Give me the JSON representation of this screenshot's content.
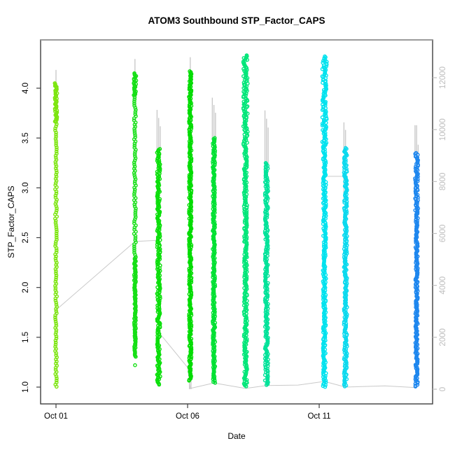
{
  "chart_data": {
    "type": "scatter",
    "title": "ATOM3 Southbound STP_Factor_CAPS",
    "xlabel": "Date",
    "ylabel": "STP_Factor_CAPS",
    "point_style": "open-circle",
    "grid": false,
    "ylim": [
      0.85,
      4.47
    ],
    "y2lim": [
      0,
      12600
    ],
    "x_ticks": [
      {
        "label": "Oct 01",
        "day": 0
      },
      {
        "label": "Oct 06",
        "day": 5
      },
      {
        "label": "Oct 11",
        "day": 10
      }
    ],
    "y_ticks": [
      {
        "label": "1.0",
        "value": 1.0
      },
      {
        "label": "1.5",
        "value": 1.5
      },
      {
        "label": "2.0",
        "value": 2.0
      },
      {
        "label": "2.5",
        "value": 2.5
      },
      {
        "label": "3.0",
        "value": 3.0
      },
      {
        "label": "3.5",
        "value": 3.5
      },
      {
        "label": "4.0",
        "value": 4.0
      }
    ],
    "y2_ticks": [
      {
        "label": "0",
        "value": 0
      },
      {
        "label": "2000",
        "value": 2000
      },
      {
        "label": "4000",
        "value": 4000
      },
      {
        "label": "6000",
        "value": 6000
      },
      {
        "label": "8000",
        "value": 8000
      },
      {
        "label": "10000",
        "value": 10000
      },
      {
        "label": "12000",
        "value": 12000
      }
    ],
    "clusters": [
      {
        "day": 0.0,
        "color": "#7CE50F",
        "min": 1.0,
        "max": 4.05,
        "segments": [
          [
            4.05,
            3.66,
            "dense",
            8
          ],
          [
            3.66,
            1.0,
            "sparse",
            7
          ]
        ]
      },
      {
        "day": 3.0,
        "color": "#15DF15",
        "min": 1.21,
        "max": 4.15,
        "segments": [
          [
            4.15,
            3.93,
            "dense",
            8
          ],
          [
            3.93,
            2.3,
            "sparse",
            7
          ],
          [
            2.3,
            1.3,
            "dense",
            7
          ],
          [
            1.22,
            1.21,
            "sparse",
            5
          ]
        ]
      },
      {
        "day": 3.9,
        "color": "#0ADF0A",
        "min": 1.02,
        "max": 3.39,
        "segments": [
          [
            3.39,
            1.02,
            "dense",
            9
          ]
        ]
      },
      {
        "day": 5.1,
        "color": "#00DC00",
        "min": 1.06,
        "max": 4.17,
        "segments": [
          [
            4.17,
            1.06,
            "dense",
            8
          ]
        ]
      },
      {
        "day": 6.0,
        "color": "#00E132",
        "min": 1.04,
        "max": 3.5,
        "segments": [
          [
            3.5,
            1.04,
            "dense",
            8
          ]
        ]
      },
      {
        "day": 7.2,
        "color": "#00E678",
        "min": 1.0,
        "max": 4.33,
        "segments": [
          [
            4.33,
            3.4,
            "dense",
            11
          ],
          [
            3.4,
            1.0,
            "dense",
            9
          ]
        ]
      },
      {
        "day": 8.0,
        "color": "#00E299",
        "min": 1.02,
        "max": 3.25,
        "segments": [
          [
            3.25,
            1.02,
            "dense",
            9
          ]
        ]
      },
      {
        "day": 10.2,
        "color": "#00E2EE",
        "min": 1.0,
        "max": 4.32,
        "segments": [
          [
            4.32,
            3.45,
            "dense",
            11
          ],
          [
            3.45,
            1.0,
            "dense",
            9
          ]
        ]
      },
      {
        "day": 11.0,
        "color": "#0BD9EE",
        "min": 1.0,
        "max": 3.4,
        "segments": [
          [
            3.4,
            1.0,
            "dense",
            9
          ]
        ]
      },
      {
        "day": 13.7,
        "color": "#1D86EE",
        "min": 1.0,
        "max": 3.35,
        "segments": [
          [
            3.35,
            2.75,
            "dense",
            9
          ],
          [
            2.75,
            1.0,
            "dense",
            8
          ]
        ]
      }
    ],
    "gray_spikes": [
      [
        0.0,
        11700,
        12300
      ],
      [
        3.0,
        12000,
        12720
      ],
      [
        3.84,
        9200,
        10760
      ],
      [
        3.9,
        9100,
        10450
      ],
      [
        3.96,
        9200,
        10130
      ],
      [
        5.1,
        12200,
        12790
      ],
      [
        5.07,
        0,
        450
      ],
      [
        5.13,
        0,
        380
      ],
      [
        5.94,
        9600,
        11230
      ],
      [
        6.0,
        9500,
        10950
      ],
      [
        6.06,
        9650,
        10650
      ],
      [
        7.94,
        8600,
        10740
      ],
      [
        8.0,
        8500,
        10420
      ],
      [
        8.06,
        8650,
        10080
      ],
      [
        10.94,
        9200,
        10280
      ],
      [
        11.0,
        9100,
        9990
      ],
      [
        13.64,
        9000,
        10170
      ],
      [
        13.7,
        8900,
        10170
      ],
      [
        13.76,
        9050,
        9420
      ]
    ],
    "gray_lines": [
      [
        [
          0,
          2600
        ],
        [
          0,
          3050
        ],
        [
          3.0,
          5690
        ],
        [
          3.9,
          5740
        ],
        [
          3.9,
          2200
        ],
        [
          5.0,
          840
        ],
        [
          5.1,
          30
        ],
        [
          6.0,
          240
        ],
        [
          7.2,
          30
        ],
        [
          8.0,
          140
        ],
        [
          9.2,
          160
        ],
        [
          10.2,
          300
        ],
        [
          11.0,
          80
        ],
        [
          12.5,
          130
        ],
        [
          13.7,
          60
        ]
      ],
      [
        [
          10.25,
          8200
        ],
        [
          10.93,
          8200
        ],
        [
          10.93,
          7300
        ]
      ]
    ],
    "colors": {
      "gray_series": "#C9C9C9",
      "axis_secondary": "#BEBEBE",
      "axis_primary": "#000000",
      "box_border": "#3F3F3F",
      "box_border_top": "#9B9B9B",
      "background": "#FFFFFF"
    }
  }
}
